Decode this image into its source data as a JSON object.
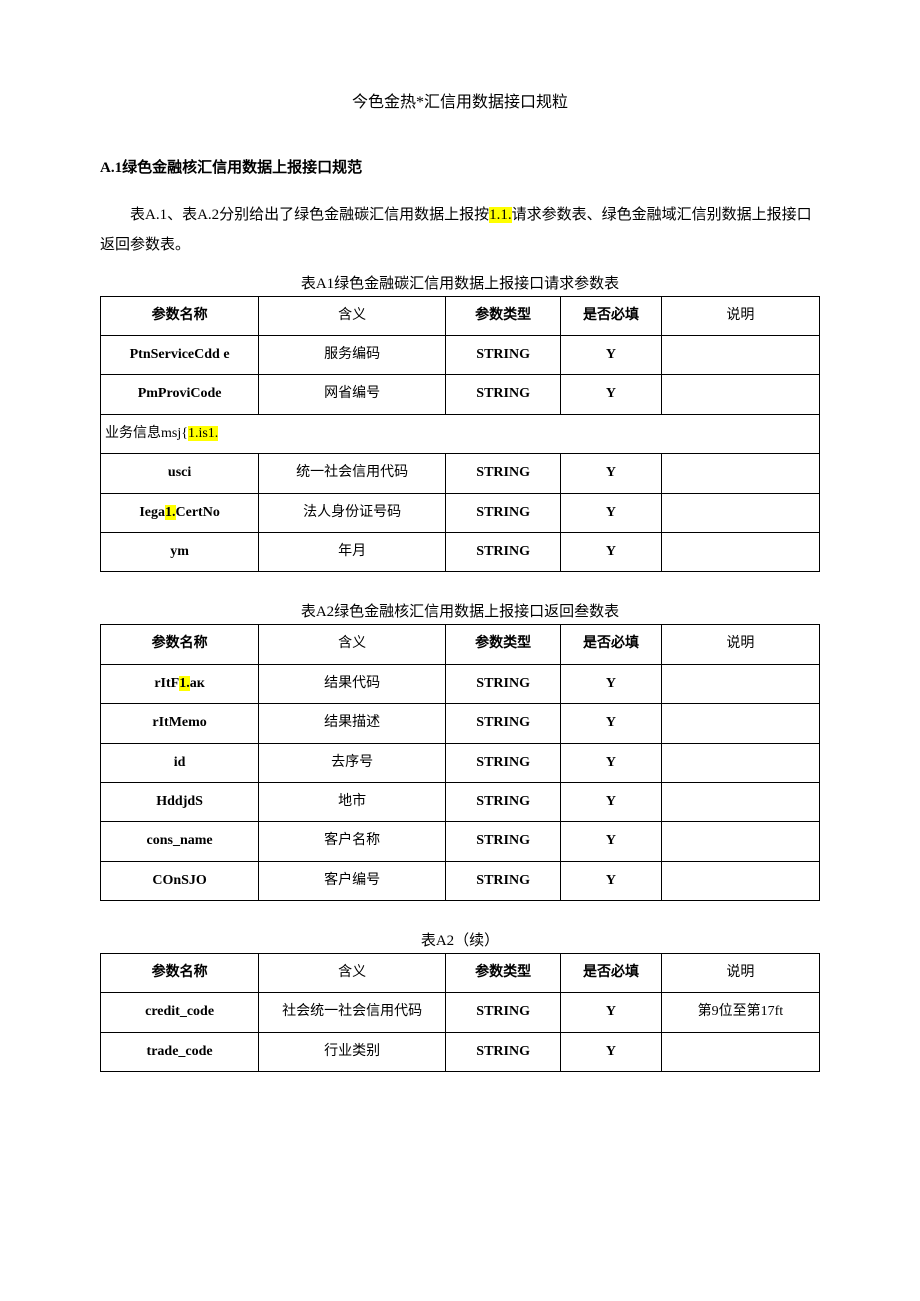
{
  "doc": {
    "title": "今色金热*汇信用数据接口规粒",
    "section_heading": "A.1绿色金融核汇信用数据上报接口规范",
    "intro_pre": "表A.1、表A.2分别给出了绿色金融碳汇信用数据上报按",
    "intro_hl1": "1.1.",
    "intro_mid": "请求参数表、绿色金融域汇信别数据上报接口返回参数表。"
  },
  "headers": {
    "param_name": "参数名称",
    "meaning": "含义",
    "param_type": "参数类型",
    "required": "是否必填",
    "desc": "说明"
  },
  "tableA1": {
    "caption": "表A1绿色金融碳汇信用数据上报接口请求参数表",
    "rows1": [
      {
        "name": "PtnServiceCdd e",
        "meaning": "服务编码",
        "type": "STRING",
        "req": "Y",
        "desc": ""
      },
      {
        "name": "PmProviCode",
        "meaning": "网省编号",
        "type": "STRING",
        "req": "Y",
        "desc": ""
      }
    ],
    "spanrow_pre": "业务信息msj{",
    "spanrow_hl": "1.is1.",
    "rows2": [
      {
        "name": "usci",
        "meaning": "统一社会信用代码",
        "type": "STRING",
        "req": "Y",
        "desc": ""
      },
      {
        "name": "Iega",
        "name_hl": "1.",
        "name_post": "CertNo",
        "meaning": "法人身份证号码",
        "type": "STRING",
        "req": "Y",
        "desc": ""
      },
      {
        "name": "ym",
        "meaning": "年月",
        "type": "STRING",
        "req": "Y",
        "desc": ""
      }
    ]
  },
  "tableA2": {
    "caption": "表A2绿色金融核汇信用数据上报接口返回叁数表",
    "rows": [
      {
        "name": "rItF",
        "name_hl": "1.",
        "name_post": "aк",
        "meaning": "结果代码",
        "type": "STRING",
        "req": "Y",
        "desc": ""
      },
      {
        "name": "rItMemo",
        "meaning": "结果描述",
        "type": "STRING",
        "req": "Y",
        "desc": ""
      },
      {
        "name": "id",
        "meaning": "去序号",
        "type": "STRING",
        "req": "Y",
        "desc": ""
      },
      {
        "name": "HddjdS",
        "meaning": "地市",
        "type": "STRING",
        "req": "Y",
        "desc": ""
      },
      {
        "name": "cons_name",
        "meaning": "客户名称",
        "type": "STRING",
        "req": "Y",
        "desc": ""
      },
      {
        "name": "COnSJO",
        "meaning": "客户编号",
        "type": "STRING",
        "req": "Y",
        "desc": ""
      }
    ]
  },
  "tableA2c": {
    "caption": "表A2（续）",
    "rows": [
      {
        "name": "credit_code",
        "meaning": "社会统一社会信用代码",
        "type": "STRING",
        "req": "Y",
        "desc": "第9位至第17ft"
      },
      {
        "name": "trade_code",
        "meaning": "行业类别",
        "type": "STRING",
        "req": "Y",
        "desc": ""
      }
    ]
  }
}
